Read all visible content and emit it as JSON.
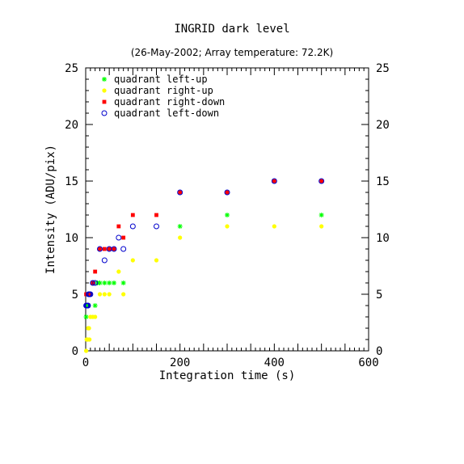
{
  "chart_data": {
    "type": "scatter",
    "title": "INGRID dark level",
    "subtitle": "(26-May-2002; Array temperature: 72.2K)",
    "xlabel": "Integration time (s)",
    "ylabel": "Intensity (ADU/pix)",
    "xlim": [
      0,
      600
    ],
    "ylim": [
      0,
      25
    ],
    "x_ticks": [
      0,
      200,
      400,
      600
    ],
    "y_ticks": [
      0,
      5,
      10,
      15,
      20,
      25
    ],
    "right_axis_ticks": [
      0,
      5,
      10,
      15,
      20,
      25
    ],
    "grid": false,
    "legend_position": "top-left",
    "series": [
      {
        "name": "quadrant left-up",
        "marker": "asterisk",
        "color": "#00ff00",
        "points": [
          [
            1,
            3
          ],
          [
            2,
            4
          ],
          [
            3,
            4
          ],
          [
            4,
            4
          ],
          [
            5,
            4
          ],
          [
            6,
            4
          ],
          [
            7,
            5
          ],
          [
            8,
            5
          ],
          [
            10,
            5
          ],
          [
            15,
            6
          ],
          [
            20,
            4
          ],
          [
            25,
            6
          ],
          [
            30,
            6
          ],
          [
            40,
            6
          ],
          [
            50,
            6
          ],
          [
            60,
            6
          ],
          [
            80,
            6
          ],
          [
            200,
            11
          ],
          [
            300,
            12
          ],
          [
            500,
            12
          ]
        ]
      },
      {
        "name": "quadrant right-up",
        "marker": "filled-circle",
        "color": "#ffff00",
        "points": [
          [
            1,
            0
          ],
          [
            2,
            1
          ],
          [
            3,
            1
          ],
          [
            4,
            1
          ],
          [
            5,
            2
          ],
          [
            6,
            2
          ],
          [
            7,
            2
          ],
          [
            8,
            1
          ],
          [
            10,
            3
          ],
          [
            15,
            3
          ],
          [
            20,
            3
          ],
          [
            30,
            5
          ],
          [
            40,
            5
          ],
          [
            50,
            5
          ],
          [
            70,
            7
          ],
          [
            80,
            5
          ],
          [
            100,
            8
          ],
          [
            150,
            8
          ],
          [
            200,
            10
          ],
          [
            300,
            11
          ],
          [
            400,
            11
          ],
          [
            500,
            11
          ]
        ]
      },
      {
        "name": "quadrant right-down",
        "marker": "filled-square",
        "color": "#ff0000",
        "points": [
          [
            1,
            5
          ],
          [
            5,
            5
          ],
          [
            8,
            5
          ],
          [
            10,
            5
          ],
          [
            15,
            6
          ],
          [
            20,
            7
          ],
          [
            30,
            9
          ],
          [
            40,
            9
          ],
          [
            50,
            9
          ],
          [
            60,
            9
          ],
          [
            70,
            11
          ],
          [
            80,
            10
          ],
          [
            100,
            12
          ],
          [
            150,
            12
          ],
          [
            200,
            14
          ],
          [
            300,
            14
          ],
          [
            400,
            15
          ],
          [
            500,
            15
          ]
        ]
      },
      {
        "name": "quadrant left-down",
        "marker": "open-circle",
        "color": "#0000cc",
        "points": [
          [
            1,
            4
          ],
          [
            2,
            4
          ],
          [
            3,
            4
          ],
          [
            4,
            4
          ],
          [
            5,
            4
          ],
          [
            6,
            5
          ],
          [
            8,
            5
          ],
          [
            10,
            5
          ],
          [
            15,
            6
          ],
          [
            20,
            6
          ],
          [
            30,
            9
          ],
          [
            40,
            8
          ],
          [
            50,
            9
          ],
          [
            60,
            9
          ],
          [
            70,
            10
          ],
          [
            80,
            9
          ],
          [
            100,
            11
          ],
          [
            150,
            11
          ],
          [
            200,
            14
          ],
          [
            300,
            14
          ],
          [
            400,
            15
          ],
          [
            500,
            15
          ]
        ]
      }
    ]
  }
}
